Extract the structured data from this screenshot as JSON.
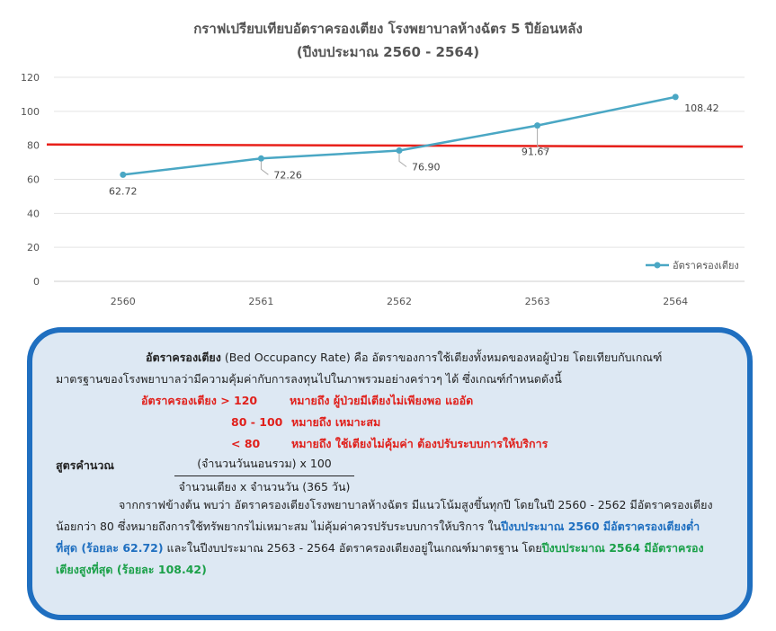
{
  "chart_data": {
    "type": "line",
    "title": "กราฟเปรียบเทียบอัตราครองเตียง โรงพยาบาลห้างฉัตร 5 ปีย้อนหลัง",
    "subtitle": "(ปีงบประมาณ 2560 - 2564)",
    "categories": [
      "2560",
      "2561",
      "2562",
      "2563",
      "2564"
    ],
    "series": [
      {
        "name": "อัตราครองเตียง",
        "values": [
          62.72,
          72.26,
          76.9,
          91.67,
          108.42
        ],
        "labels": [
          "62.72",
          "72.26",
          "76.90",
          "91.67",
          "108.42"
        ],
        "color": "#4aa7c4"
      }
    ],
    "reference_line": {
      "start": 80.5,
      "end": 79.2,
      "color": "#e8201a"
    },
    "ylim": [
      0,
      120
    ],
    "yticks": [
      "0",
      "20",
      "40",
      "60",
      "80",
      "100",
      "120"
    ],
    "grid": true,
    "legend_position": "right"
  },
  "info": {
    "definition_term": "อัตราครองเตียง",
    "definition_text": " (Bed Occupancy Rate) คือ อัตราของการใช้เตียงทั้งหมดของหอผู้ป่วย โดยเทียบกับเกณฑ์",
    "definition_text2": "มาตรฐานของโรงพยาบาลว่ามีความคุ้มค่ากับการลงทุนไปในภาพรวมอย่างคร่าวๆ ได้ ซึ่งเกณฑ์กำหนดดังนี้",
    "criteria": [
      {
        "range": "อัตราครองเตียง  > 120",
        "meaning": "หมายถึง ผู้ป่วยมีเตียงไม่เพียงพอ แออัด"
      },
      {
        "range": "80 - 100",
        "meaning": "หมายถึง เหมาะสม"
      },
      {
        "range": "< 80",
        "meaning": "หมายถึง ใช้เตียงไม่คุ้มค่า ต้องปรับระบบการให้บริการ"
      }
    ],
    "formula_label": "สูตรคำนวณ",
    "formula_numerator": "(จำนวนวันนอนรวม) x 100",
    "formula_denominator": "จำนวนเตียง x จำนวนวัน (365 วัน)",
    "summary_1": "จากกราฟข้างต้น พบว่า อัตราครองเตียงโรงพยาบาลห้างฉัตร มีแนวโน้มสูงขึ้นทุกปี โดยในปี 2560 - 2562 มีอัตราครองเตียง",
    "summary_2a": "น้อยกว่า 80 ซึ่งหมายถึงการใช้ทรัพยากรไม่เหมาะสม ไม่คุ้มค่าควรปรับระบบการให้บริการ ใน",
    "summary_2b": "ปีงบประมาณ 2560 มีอัตราครองเตียงต่ำ",
    "summary_3a": "ที่สุด (ร้อยละ 62.72)",
    "summary_3b": " และในปีงบประมาณ 2563 - 2564 อัตราครองเตียงอยู่ในเกณฑ์มาตรฐาน โดย",
    "summary_3c": "ปีงบประมาณ 2564 มีอัตราครอง",
    "summary_4": "เตียงสูงที่สุด (ร้อยละ 108.42)"
  }
}
